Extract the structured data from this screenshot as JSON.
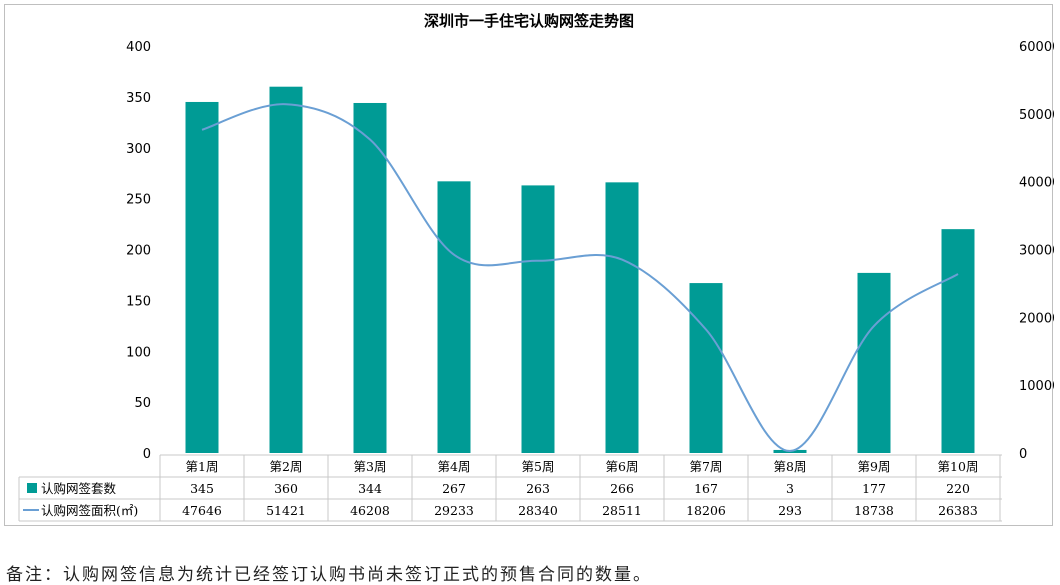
{
  "chart_data": {
    "type": "bar",
    "title": "深圳市一手住宅认购网签走势图",
    "categories": [
      "第1周",
      "第2周",
      "第3周",
      "第4周",
      "第5周",
      "第6周",
      "第7周",
      "第8周",
      "第9周",
      "第10周"
    ],
    "series": [
      {
        "name": "认购网签套数",
        "type": "bar",
        "axis": "left",
        "color": "#009b95",
        "values": [
          345,
          360,
          344,
          267,
          263,
          266,
          167,
          3,
          177,
          220
        ]
      },
      {
        "name": "认购网签面积(㎡)",
        "type": "line",
        "axis": "right",
        "color": "#6a9fd4",
        "values": [
          47646,
          51421,
          46208,
          29233,
          28340,
          28511,
          18206,
          293,
          18738,
          26383
        ]
      }
    ],
    "left_axis": {
      "ylim": [
        0,
        400
      ],
      "ticks": [
        0,
        50,
        100,
        150,
        200,
        250,
        300,
        350,
        400
      ]
    },
    "right_axis": {
      "ylim": [
        0,
        60000
      ],
      "ticks": [
        0,
        10000,
        20000,
        30000,
        40000,
        50000,
        60000
      ]
    },
    "grid": false,
    "legend": "data-table"
  },
  "note": "备注：认购网签信息为统计已经签订认购书尚未签订正式的预售合同的数量。"
}
